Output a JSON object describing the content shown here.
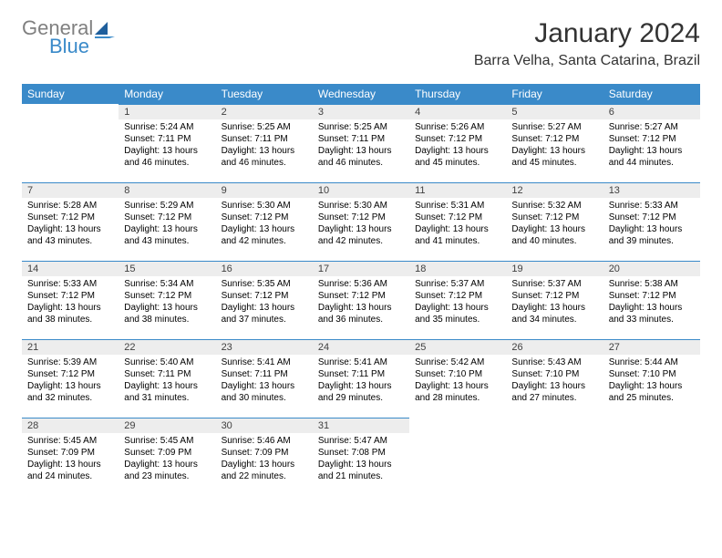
{
  "logo": {
    "line1": "General",
    "line2": "Blue"
  },
  "title": "January 2024",
  "location": "Barra Velha, Santa Catarina, Brazil",
  "colors": {
    "header_bg": "#3a8ac9",
    "header_fg": "#ffffff",
    "daynum_bg": "#ededed",
    "daynum_border": "#3a8ac9",
    "body_bg": "#ffffff",
    "logo_gray": "#808080",
    "logo_blue": "#3a8ac9"
  },
  "weekdays": [
    "Sunday",
    "Monday",
    "Tuesday",
    "Wednesday",
    "Thursday",
    "Friday",
    "Saturday"
  ],
  "weeks": [
    [
      null,
      {
        "d": "1",
        "sr": "Sunrise: 5:24 AM",
        "ss": "Sunset: 7:11 PM",
        "dl1": "Daylight: 13 hours",
        "dl2": "and 46 minutes."
      },
      {
        "d": "2",
        "sr": "Sunrise: 5:25 AM",
        "ss": "Sunset: 7:11 PM",
        "dl1": "Daylight: 13 hours",
        "dl2": "and 46 minutes."
      },
      {
        "d": "3",
        "sr": "Sunrise: 5:25 AM",
        "ss": "Sunset: 7:11 PM",
        "dl1": "Daylight: 13 hours",
        "dl2": "and 46 minutes."
      },
      {
        "d": "4",
        "sr": "Sunrise: 5:26 AM",
        "ss": "Sunset: 7:12 PM",
        "dl1": "Daylight: 13 hours",
        "dl2": "and 45 minutes."
      },
      {
        "d": "5",
        "sr": "Sunrise: 5:27 AM",
        "ss": "Sunset: 7:12 PM",
        "dl1": "Daylight: 13 hours",
        "dl2": "and 45 minutes."
      },
      {
        "d": "6",
        "sr": "Sunrise: 5:27 AM",
        "ss": "Sunset: 7:12 PM",
        "dl1": "Daylight: 13 hours",
        "dl2": "and 44 minutes."
      }
    ],
    [
      {
        "d": "7",
        "sr": "Sunrise: 5:28 AM",
        "ss": "Sunset: 7:12 PM",
        "dl1": "Daylight: 13 hours",
        "dl2": "and 43 minutes."
      },
      {
        "d": "8",
        "sr": "Sunrise: 5:29 AM",
        "ss": "Sunset: 7:12 PM",
        "dl1": "Daylight: 13 hours",
        "dl2": "and 43 minutes."
      },
      {
        "d": "9",
        "sr": "Sunrise: 5:30 AM",
        "ss": "Sunset: 7:12 PM",
        "dl1": "Daylight: 13 hours",
        "dl2": "and 42 minutes."
      },
      {
        "d": "10",
        "sr": "Sunrise: 5:30 AM",
        "ss": "Sunset: 7:12 PM",
        "dl1": "Daylight: 13 hours",
        "dl2": "and 42 minutes."
      },
      {
        "d": "11",
        "sr": "Sunrise: 5:31 AM",
        "ss": "Sunset: 7:12 PM",
        "dl1": "Daylight: 13 hours",
        "dl2": "and 41 minutes."
      },
      {
        "d": "12",
        "sr": "Sunrise: 5:32 AM",
        "ss": "Sunset: 7:12 PM",
        "dl1": "Daylight: 13 hours",
        "dl2": "and 40 minutes."
      },
      {
        "d": "13",
        "sr": "Sunrise: 5:33 AM",
        "ss": "Sunset: 7:12 PM",
        "dl1": "Daylight: 13 hours",
        "dl2": "and 39 minutes."
      }
    ],
    [
      {
        "d": "14",
        "sr": "Sunrise: 5:33 AM",
        "ss": "Sunset: 7:12 PM",
        "dl1": "Daylight: 13 hours",
        "dl2": "and 38 minutes."
      },
      {
        "d": "15",
        "sr": "Sunrise: 5:34 AM",
        "ss": "Sunset: 7:12 PM",
        "dl1": "Daylight: 13 hours",
        "dl2": "and 38 minutes."
      },
      {
        "d": "16",
        "sr": "Sunrise: 5:35 AM",
        "ss": "Sunset: 7:12 PM",
        "dl1": "Daylight: 13 hours",
        "dl2": "and 37 minutes."
      },
      {
        "d": "17",
        "sr": "Sunrise: 5:36 AM",
        "ss": "Sunset: 7:12 PM",
        "dl1": "Daylight: 13 hours",
        "dl2": "and 36 minutes."
      },
      {
        "d": "18",
        "sr": "Sunrise: 5:37 AM",
        "ss": "Sunset: 7:12 PM",
        "dl1": "Daylight: 13 hours",
        "dl2": "and 35 minutes."
      },
      {
        "d": "19",
        "sr": "Sunrise: 5:37 AM",
        "ss": "Sunset: 7:12 PM",
        "dl1": "Daylight: 13 hours",
        "dl2": "and 34 minutes."
      },
      {
        "d": "20",
        "sr": "Sunrise: 5:38 AM",
        "ss": "Sunset: 7:12 PM",
        "dl1": "Daylight: 13 hours",
        "dl2": "and 33 minutes."
      }
    ],
    [
      {
        "d": "21",
        "sr": "Sunrise: 5:39 AM",
        "ss": "Sunset: 7:12 PM",
        "dl1": "Daylight: 13 hours",
        "dl2": "and 32 minutes."
      },
      {
        "d": "22",
        "sr": "Sunrise: 5:40 AM",
        "ss": "Sunset: 7:11 PM",
        "dl1": "Daylight: 13 hours",
        "dl2": "and 31 minutes."
      },
      {
        "d": "23",
        "sr": "Sunrise: 5:41 AM",
        "ss": "Sunset: 7:11 PM",
        "dl1": "Daylight: 13 hours",
        "dl2": "and 30 minutes."
      },
      {
        "d": "24",
        "sr": "Sunrise: 5:41 AM",
        "ss": "Sunset: 7:11 PM",
        "dl1": "Daylight: 13 hours",
        "dl2": "and 29 minutes."
      },
      {
        "d": "25",
        "sr": "Sunrise: 5:42 AM",
        "ss": "Sunset: 7:10 PM",
        "dl1": "Daylight: 13 hours",
        "dl2": "and 28 minutes."
      },
      {
        "d": "26",
        "sr": "Sunrise: 5:43 AM",
        "ss": "Sunset: 7:10 PM",
        "dl1": "Daylight: 13 hours",
        "dl2": "and 27 minutes."
      },
      {
        "d": "27",
        "sr": "Sunrise: 5:44 AM",
        "ss": "Sunset: 7:10 PM",
        "dl1": "Daylight: 13 hours",
        "dl2": "and 25 minutes."
      }
    ],
    [
      {
        "d": "28",
        "sr": "Sunrise: 5:45 AM",
        "ss": "Sunset: 7:09 PM",
        "dl1": "Daylight: 13 hours",
        "dl2": "and 24 minutes."
      },
      {
        "d": "29",
        "sr": "Sunrise: 5:45 AM",
        "ss": "Sunset: 7:09 PM",
        "dl1": "Daylight: 13 hours",
        "dl2": "and 23 minutes."
      },
      {
        "d": "30",
        "sr": "Sunrise: 5:46 AM",
        "ss": "Sunset: 7:09 PM",
        "dl1": "Daylight: 13 hours",
        "dl2": "and 22 minutes."
      },
      {
        "d": "31",
        "sr": "Sunrise: 5:47 AM",
        "ss": "Sunset: 7:08 PM",
        "dl1": "Daylight: 13 hours",
        "dl2": "and 21 minutes."
      },
      null,
      null,
      null
    ]
  ]
}
